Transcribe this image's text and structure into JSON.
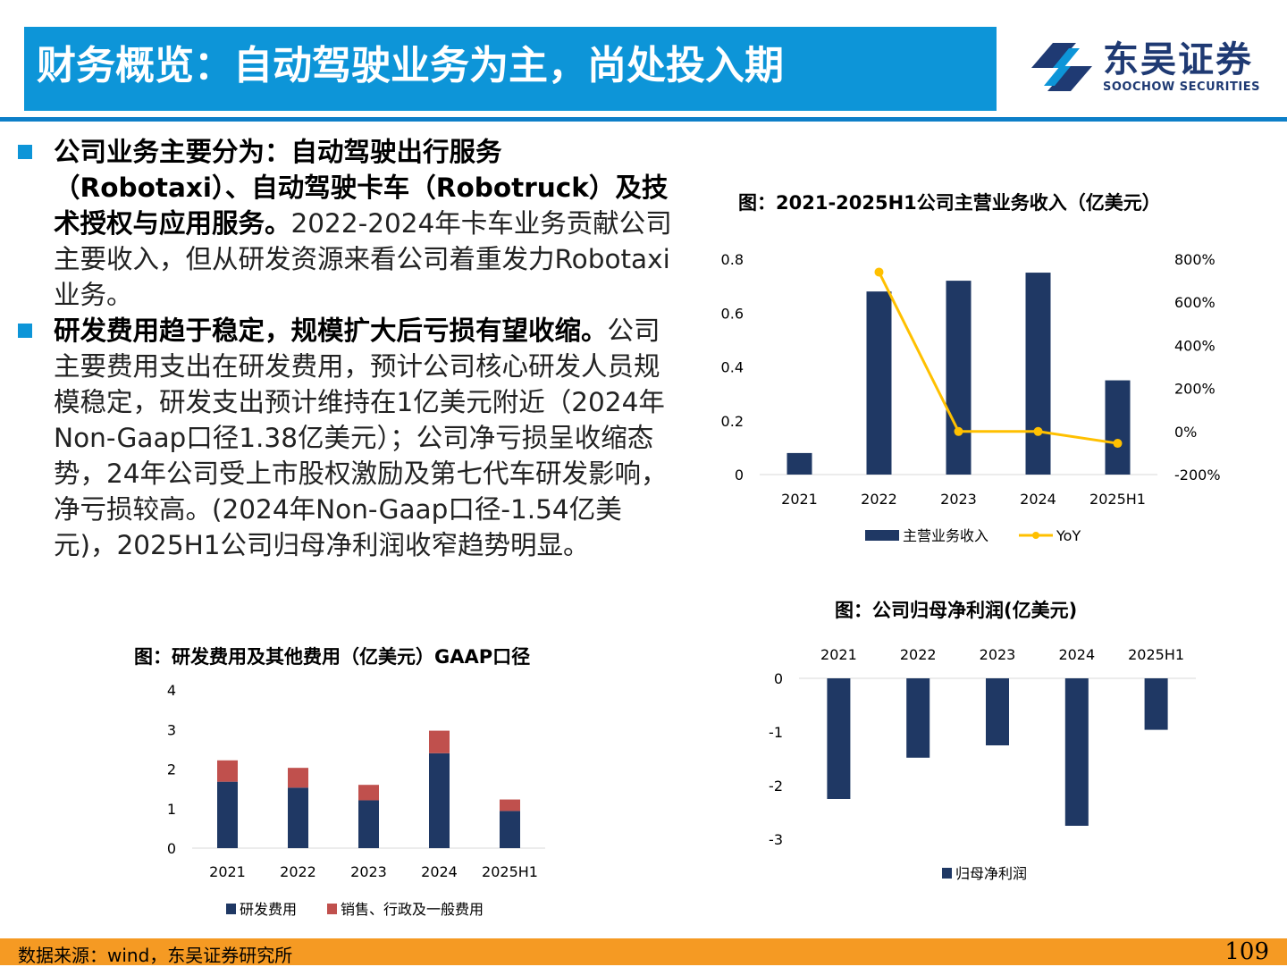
{
  "header": {
    "title": "财务概览：自动驾驶业务为主，尚处投入期"
  },
  "logo": {
    "cn": "东吴证券",
    "en": "SOOCHOW SECURITIES",
    "brand_color": "#1f3a73"
  },
  "bullets": [
    {
      "bold": "公司业务主要分为：自动驾驶出行服务（Robotaxi）、自动驾驶卡车（Robotruck）及技术授权与应用服务。",
      "text": "2022-2024年卡车业务贡献公司主要收入，但从研发资源来看公司着重发力Robotaxi业务。"
    },
    {
      "bold": "研发费用趋于稳定，规模扩大后亏损有望收缩。",
      "text": "公司主要费用支出在研发费用，预计公司核心研发人员规模稳定，研发支出预计维持在1亿美元附近（2024年Non-Gaap口径1.38亿美元）；公司净亏损呈收缩态势，24年公司受上市股权激励及第七代车研发影响，净亏损较高。(2024年Non-Gaap口径-1.54亿美元)，2025H1公司归母净利润收窄趋势明显。"
    }
  ],
  "chart_data": [
    {
      "id": "revenue",
      "type": "bar",
      "title": "图：2021-2025H1公司主营业务收入（亿美元）",
      "categories": [
        "2021",
        "2022",
        "2023",
        "2024",
        "2025H1"
      ],
      "series": [
        {
          "name": "主营业务收入",
          "type": "bar",
          "axis": "left",
          "color": "#1f3864",
          "values": [
            0.08,
            0.68,
            0.72,
            0.75,
            0.35
          ]
        },
        {
          "name": "YoY",
          "type": "line",
          "axis": "right",
          "color": "#ffc000",
          "values": [
            null,
            740,
            0,
            0,
            -55
          ]
        }
      ],
      "ylim_left": [
        0,
        0.8
      ],
      "yticks_left": [
        "0",
        "0.2",
        "0.4",
        "0.6",
        "0.8"
      ],
      "ylim_right": [
        -200,
        800
      ],
      "yticks_right": [
        "-200%",
        "0%",
        "200%",
        "400%",
        "600%",
        "800%"
      ],
      "legend": "bottom"
    },
    {
      "id": "expenses",
      "type": "bar",
      "stacked": true,
      "title": "图：研发费用及其他费用（亿美元）GAAP口径",
      "categories": [
        "2021",
        "2022",
        "2023",
        "2024",
        "2025H1"
      ],
      "series": [
        {
          "name": "研发费用",
          "color": "#1f3864",
          "values": [
            1.68,
            1.53,
            1.21,
            2.4,
            0.94
          ]
        },
        {
          "name": "销售、行政及一般费用",
          "color": "#c0504d",
          "values": [
            0.54,
            0.5,
            0.39,
            0.57,
            0.29
          ]
        }
      ],
      "ylim": [
        0,
        4
      ],
      "yticks": [
        "0",
        "1",
        "2",
        "3",
        "4"
      ],
      "legend": "bottom"
    },
    {
      "id": "netprofit",
      "type": "bar",
      "title": "图：公司归母净利润(亿美元)",
      "categories": [
        "2021",
        "2022",
        "2023",
        "2024",
        "2025H1"
      ],
      "series": [
        {
          "name": "归母净利润",
          "color": "#1f3864",
          "values": [
            -2.25,
            -1.48,
            -1.25,
            -2.75,
            -0.96
          ]
        }
      ],
      "ylim": [
        -3.3,
        0
      ],
      "yticks": [
        "0",
        "-1",
        "-2",
        "-3"
      ],
      "legend": "bottom"
    }
  ],
  "footer": {
    "source": "数据来源：wind，东吴证券研究所",
    "page": "109"
  }
}
